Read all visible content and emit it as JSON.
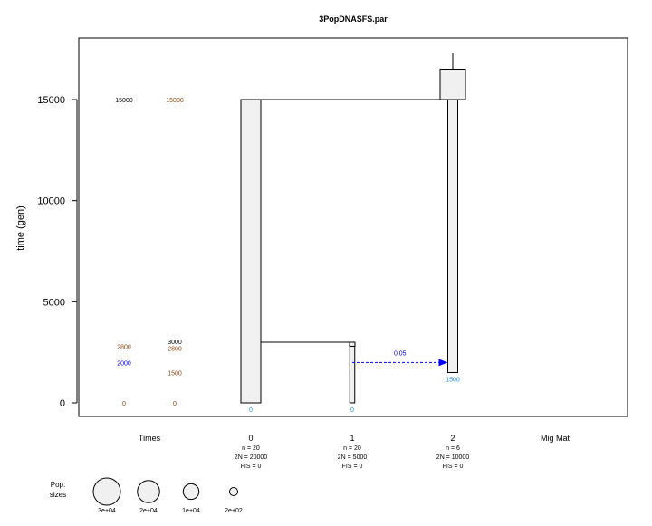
{
  "title": "3PopDNASFS.par",
  "ylabel": "time (gen)",
  "ylim": [
    0,
    17500
  ],
  "yticks": [
    "0",
    "5000",
    "10000",
    "15000"
  ],
  "colors": {
    "box_fill": "#f0f0f0",
    "black": "#000000",
    "brown": "#8b4513",
    "blue": "#0000ff",
    "lightblue": "#1e90ff",
    "arrow": "#0000ff"
  },
  "columns": [
    "Times",
    "0",
    "1",
    "2",
    "Mig Mat"
  ],
  "populations": [
    {
      "label": "0",
      "n": "n = 20",
      "two_n": "2N = 20000",
      "fis": "FIS = 0",
      "sample_time": "0",
      "start": 0,
      "end": 15000,
      "width_n": 20000
    },
    {
      "label": "1",
      "n": "n = 20",
      "two_n": "2N = 5000",
      "fis": "FIS = 0",
      "sample_time": "0",
      "start": 0,
      "end": 2800,
      "width_n": 5000
    },
    {
      "label": "2",
      "n": "n = 6",
      "two_n": "2N = 10000",
      "fis": "FIS = 0",
      "sample_time": "1500",
      "start": 1500,
      "end": 15000,
      "width_n": 10000
    }
  ],
  "ancestral_box": {
    "start": 15000,
    "end": 16500,
    "stem_top": 17300
  },
  "merges": [
    {
      "from": 2,
      "to": 0,
      "time": 15000
    },
    {
      "from": 1,
      "to": 0,
      "time": 3000
    }
  ],
  "migration": {
    "from": 1,
    "to": 2,
    "time": 2000,
    "rate": "0.05"
  },
  "times_col1": [
    {
      "text": "15000",
      "value": 15000,
      "color": "black"
    },
    {
      "text": "2800",
      "value": 2800,
      "color": "brown"
    },
    {
      "text": "2000",
      "value": 2000,
      "color": "blue"
    },
    {
      "text": "0",
      "value": 0,
      "color": "brown"
    }
  ],
  "times_col2": [
    {
      "text": "15000",
      "value": 15000,
      "color": "brown"
    },
    {
      "text": "3000",
      "value": 3000,
      "color": "black"
    },
    {
      "text": "2800",
      "value": 2800,
      "color": "brown"
    },
    {
      "text": "1500",
      "value": 1500,
      "color": "brown"
    },
    {
      "text": "0",
      "value": 0,
      "color": "brown"
    }
  ],
  "pop_sizes_legend": {
    "label_line1": "Pop.",
    "label_line2": "sizes",
    "items": [
      {
        "text": "3e+04",
        "value": 30000
      },
      {
        "text": "2e+04",
        "value": 20000
      },
      {
        "text": "1e+04",
        "value": 10000
      },
      {
        "text": "2e+02",
        "value": 200
      }
    ]
  }
}
